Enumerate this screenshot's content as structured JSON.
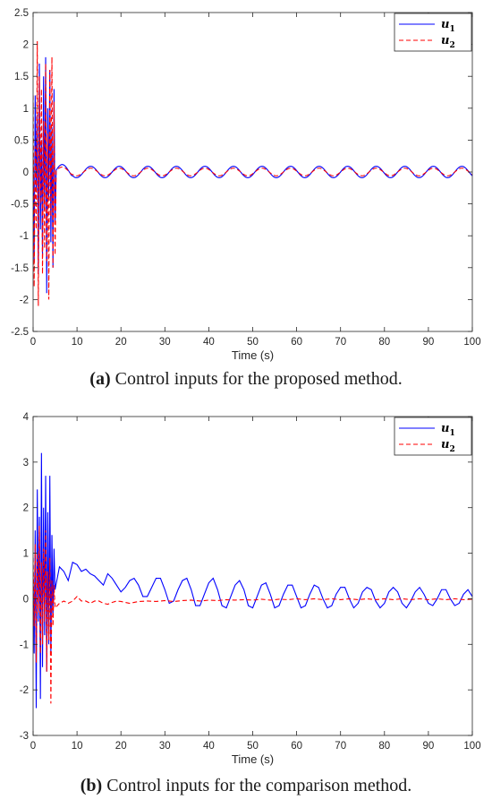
{
  "chart_data": [
    {
      "type": "line",
      "caption_tag": "(a)",
      "caption_text": "Control inputs for the proposed method.",
      "xlabel": "Time (s)",
      "ylabel": "",
      "xlim": [
        0,
        100
      ],
      "ylim": [
        -2.5,
        2.5
      ],
      "xticks": [
        "0",
        "10",
        "20",
        "30",
        "40",
        "50",
        "60",
        "70",
        "80",
        "90",
        "100"
      ],
      "yticks": [
        "-2.5",
        "-2",
        "-1.5",
        "-1",
        "-0.5",
        "0",
        "0.5",
        "1",
        "1.5",
        "2",
        "2.5"
      ],
      "grid": false,
      "legend_position": "top-right",
      "series": [
        {
          "name": "u1",
          "color": "#0000ff",
          "dash": "solid",
          "transient_window": [
            0,
            5
          ],
          "transient_peaks": [
            0.3,
            -1.4,
            1.2,
            -0.3,
            0.9,
            -1.6,
            1.7,
            -0.9,
            0.5,
            -1.3,
            1.5,
            -0.6,
            1.8,
            -1.9,
            1.0,
            -0.4,
            1.6,
            -1.1,
            0.7,
            -1.5,
            1.3,
            -0.8
          ],
          "steady_amplitude": 0.09,
          "steady_period_s": 6.5
        },
        {
          "name": "u2",
          "color": "#ff0000",
          "dash": "dashed",
          "transient_window": [
            0,
            5
          ],
          "transient_peaks": [
            1.2,
            -1.8,
            0.4,
            -0.9,
            2.05,
            -2.1,
            1.5,
            -0.5,
            1.3,
            -1.6,
            0.8,
            -1.2,
            1.7,
            -1.4,
            0.6,
            -2.0,
            1.6,
            -0.7,
            1.8,
            -1.5,
            1.1,
            -1.3
          ],
          "steady_amplitude": 0.06,
          "steady_period_s": 6.5
        }
      ]
    },
    {
      "type": "line",
      "caption_tag": "(b)",
      "caption_text": "Control inputs for the comparison method.",
      "xlabel": "Time (s)",
      "ylabel": "",
      "xlim": [
        0,
        100
      ],
      "ylim": [
        -3,
        4
      ],
      "xticks": [
        "0",
        "10",
        "20",
        "30",
        "40",
        "50",
        "60",
        "70",
        "80",
        "90",
        "100"
      ],
      "yticks": [
        "-3",
        "-2",
        "-1",
        "0",
        "1",
        "2",
        "3",
        "4"
      ],
      "grid": false,
      "legend_position": "top-right",
      "series": [
        {
          "name": "u1",
          "color": "#0000ff",
          "dash": "solid",
          "transient_window": [
            0,
            5
          ],
          "transient_peaks": [
            0.5,
            -1.2,
            1.5,
            -2.4,
            2.4,
            -0.5,
            1.8,
            -2.2,
            3.2,
            -1.5,
            2.0,
            -0.8,
            2.7,
            -1.6,
            1.9,
            -1.0,
            2.7,
            -1.2,
            1.4,
            -0.4,
            1.1,
            0.2
          ],
          "steady_points": [
            [
              5,
              0.5
            ],
            [
              6,
              0.7
            ],
            [
              7,
              0.6
            ],
            [
              8,
              0.4
            ],
            [
              9,
              0.8
            ],
            [
              10,
              0.75
            ],
            [
              11,
              0.6
            ],
            [
              12,
              0.65
            ],
            [
              13,
              0.55
            ],
            [
              14,
              0.5
            ],
            [
              15,
              0.4
            ],
            [
              16,
              0.3
            ],
            [
              17,
              0.55
            ],
            [
              18,
              0.45
            ],
            [
              19,
              0.3
            ],
            [
              20,
              0.15
            ],
            [
              21,
              0.25
            ],
            [
              22,
              0.4
            ],
            [
              23,
              0.45
            ],
            [
              24,
              0.3
            ],
            [
              25,
              0.05
            ],
            [
              26,
              0.05
            ],
            [
              27,
              0.25
            ],
            [
              28,
              0.45
            ],
            [
              29,
              0.45
            ],
            [
              30,
              0.2
            ],
            [
              31,
              -0.1
            ],
            [
              32,
              -0.05
            ],
            [
              33,
              0.2
            ],
            [
              34,
              0.4
            ],
            [
              35,
              0.45
            ],
            [
              36,
              0.2
            ],
            [
              37,
              -0.15
            ],
            [
              38,
              -0.15
            ],
            [
              39,
              0.1
            ],
            [
              40,
              0.35
            ],
            [
              41,
              0.45
            ],
            [
              42,
              0.2
            ],
            [
              43,
              -0.15
            ],
            [
              44,
              -0.2
            ],
            [
              45,
              0.05
            ],
            [
              46,
              0.3
            ],
            [
              47,
              0.4
            ],
            [
              48,
              0.2
            ],
            [
              49,
              -0.15
            ],
            [
              50,
              -0.2
            ],
            [
              51,
              0.05
            ],
            [
              52,
              0.3
            ],
            [
              53,
              0.35
            ],
            [
              54,
              0.1
            ],
            [
              55,
              -0.2
            ],
            [
              56,
              -0.15
            ],
            [
              57,
              0.1
            ],
            [
              58,
              0.3
            ],
            [
              59,
              0.3
            ],
            [
              60,
              0.05
            ],
            [
              61,
              -0.2
            ],
            [
              62,
              -0.15
            ],
            [
              63,
              0.1
            ],
            [
              64,
              0.3
            ],
            [
              65,
              0.25
            ],
            [
              66,
              0.0
            ],
            [
              67,
              -0.2
            ],
            [
              68,
              -0.15
            ],
            [
              69,
              0.1
            ],
            [
              70,
              0.25
            ],
            [
              71,
              0.25
            ],
            [
              72,
              0.0
            ],
            [
              73,
              -0.2
            ],
            [
              74,
              -0.1
            ],
            [
              75,
              0.15
            ],
            [
              76,
              0.25
            ],
            [
              77,
              0.2
            ],
            [
              78,
              -0.05
            ],
            [
              79,
              -0.2
            ],
            [
              80,
              -0.1
            ],
            [
              81,
              0.15
            ],
            [
              82,
              0.25
            ],
            [
              83,
              0.15
            ],
            [
              84,
              -0.1
            ],
            [
              85,
              -0.2
            ],
            [
              86,
              -0.05
            ],
            [
              87,
              0.15
            ],
            [
              88,
              0.25
            ],
            [
              89,
              0.1
            ],
            [
              90,
              -0.1
            ],
            [
              91,
              -0.15
            ],
            [
              92,
              0.0
            ],
            [
              93,
              0.2
            ],
            [
              94,
              0.2
            ],
            [
              95,
              0.0
            ],
            [
              96,
              -0.15
            ],
            [
              97,
              -0.1
            ],
            [
              98,
              0.1
            ],
            [
              99,
              0.2
            ],
            [
              100,
              0.05
            ]
          ]
        },
        {
          "name": "u2",
          "color": "#ff0000",
          "dash": "dashed",
          "transient_window": [
            0,
            5
          ],
          "transient_peaks": [
            0.9,
            -0.6,
            1.2,
            -1.4,
            1.0,
            -0.3,
            1.6,
            -1.2,
            0.8,
            -1.0,
            1.1,
            -0.5,
            1.5,
            -1.6,
            0.6,
            -0.9,
            0.9,
            -2.3,
            0.4,
            -0.6,
            0.3,
            -0.2
          ],
          "steady_points": [
            [
              5,
              -0.15
            ],
            [
              6,
              -0.1
            ],
            [
              7,
              -0.05
            ],
            [
              8,
              -0.1
            ],
            [
              9,
              -0.05
            ],
            [
              10,
              0.05
            ],
            [
              11,
              -0.05
            ],
            [
              12,
              -0.05
            ],
            [
              13,
              -0.1
            ],
            [
              14,
              -0.05
            ],
            [
              15,
              -0.05
            ],
            [
              16,
              -0.1
            ],
            [
              17,
              -0.12
            ],
            [
              18,
              -0.08
            ],
            [
              19,
              -0.05
            ],
            [
              20,
              -0.06
            ],
            [
              22,
              -0.1
            ],
            [
              24,
              -0.06
            ],
            [
              26,
              -0.05
            ],
            [
              28,
              -0.06
            ],
            [
              30,
              -0.04
            ],
            [
              32,
              -0.06
            ],
            [
              34,
              -0.04
            ],
            [
              36,
              -0.03
            ],
            [
              38,
              -0.05
            ],
            [
              40,
              -0.03
            ],
            [
              42,
              -0.04
            ],
            [
              44,
              -0.02
            ],
            [
              46,
              -0.03
            ],
            [
              48,
              -0.02
            ],
            [
              50,
              -0.03
            ],
            [
              52,
              -0.01
            ],
            [
              54,
              -0.03
            ],
            [
              56,
              -0.01
            ],
            [
              58,
              -0.02
            ],
            [
              60,
              0.0
            ],
            [
              62,
              -0.02
            ],
            [
              64,
              0.0
            ],
            [
              66,
              -0.02
            ],
            [
              68,
              0.0
            ],
            [
              70,
              -0.02
            ],
            [
              72,
              0.0
            ],
            [
              74,
              -0.02
            ],
            [
              76,
              0.0
            ],
            [
              78,
              -0.02
            ],
            [
              80,
              0.0
            ],
            [
              82,
              -0.02
            ],
            [
              84,
              0.0
            ],
            [
              86,
              -0.02
            ],
            [
              88,
              0.0
            ],
            [
              90,
              -0.02
            ],
            [
              92,
              0.0
            ],
            [
              94,
              -0.02
            ],
            [
              96,
              0.0
            ],
            [
              98,
              -0.02
            ],
            [
              100,
              -0.01
            ]
          ]
        }
      ]
    }
  ]
}
